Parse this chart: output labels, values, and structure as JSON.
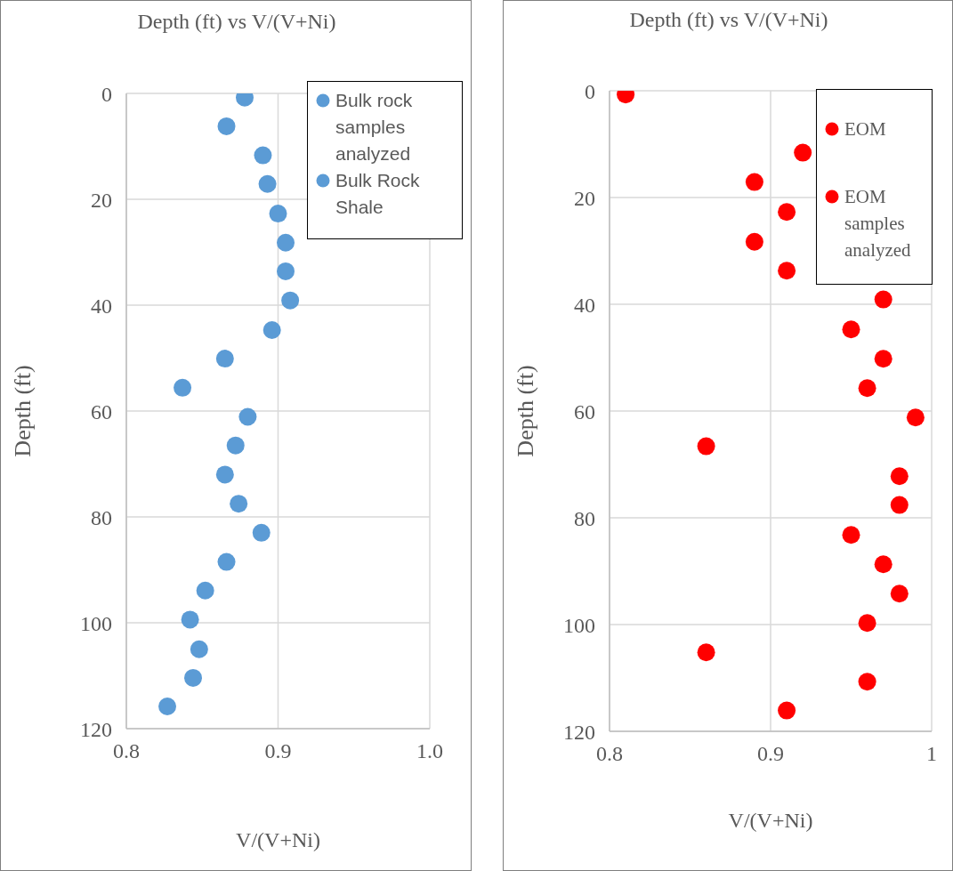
{
  "chart_data": [
    {
      "type": "scatter",
      "title": "Depth (ft) vs V/(V+Ni)",
      "xlabel": "V/(V+Ni)",
      "ylabel": "Depth (ft)",
      "xlim": [
        0.8,
        1.0
      ],
      "xticks": [
        0.8,
        0.9,
        {
          "value": 1.0,
          "label": "1.0"
        }
      ],
      "ylim": [
        120,
        0
      ],
      "yticks": [
        0,
        20,
        40,
        60,
        80,
        100,
        120
      ],
      "grid": true,
      "legend": "top right",
      "marker": "circle",
      "series": [
        {
          "name": "Bulk rock samples analyzed",
          "color": "#5b9bd5",
          "x": [
            0.893,
            0.908,
            0.896,
            0.837,
            0.88,
            0.872,
            0.865,
            0.874,
            0.889,
            0.866,
            0.852,
            0.842,
            0.827
          ],
          "values": [
            17.1,
            39.1,
            44.7,
            55.6,
            61.1,
            66.5,
            72.0,
            77.5,
            83.0,
            88.5,
            93.9,
            99.4,
            115.8
          ]
        },
        {
          "name": "Bulk Rock Shale",
          "color": "#5b9bd5",
          "x": [
            0.878,
            0.866,
            0.89,
            0.9,
            0.905,
            0.905,
            0.865,
            0.848,
            0.844
          ],
          "values": [
            0.8,
            6.2,
            11.7,
            22.7,
            28.2,
            33.6,
            50.1,
            105.0,
            110.4
          ]
        }
      ]
    },
    {
      "type": "scatter",
      "title": "Depth (ft) vs V/(V+Ni)",
      "xlabel": "V/(V+Ni)",
      "ylabel": "Depth (ft)",
      "xlim": [
        0.8,
        1
      ],
      "xticks": [
        0.8,
        0.9,
        1
      ],
      "ylim": [
        120,
        0
      ],
      "yticks": [
        0,
        20,
        40,
        60,
        80,
        100,
        120
      ],
      "grid": true,
      "legend": "top right",
      "marker": "circle",
      "series": [
        {
          "name": "EOM",
          "color": "#ff0000",
          "x": [
            0.81,
            0.92,
            0.91,
            0.89,
            0.91,
            0.97,
            0.99,
            0.98,
            0.95,
            0.97,
            0.98,
            0.96,
            0.86,
            0.96
          ],
          "values": [
            0.7,
            11.6,
            22.7,
            28.3,
            33.7,
            50.2,
            61.2,
            72.2,
            83.2,
            88.7,
            94.2,
            99.7,
            105.2,
            110.7
          ]
        },
        {
          "name": "EOM samples analyzed",
          "color": "#ff0000",
          "x": [
            0.89,
            0.97,
            0.95,
            0.96,
            0.86,
            0.98,
            0.91
          ],
          "values": [
            17.1,
            39.1,
            44.7,
            55.7,
            66.6,
            77.6,
            116.1
          ]
        }
      ]
    }
  ]
}
